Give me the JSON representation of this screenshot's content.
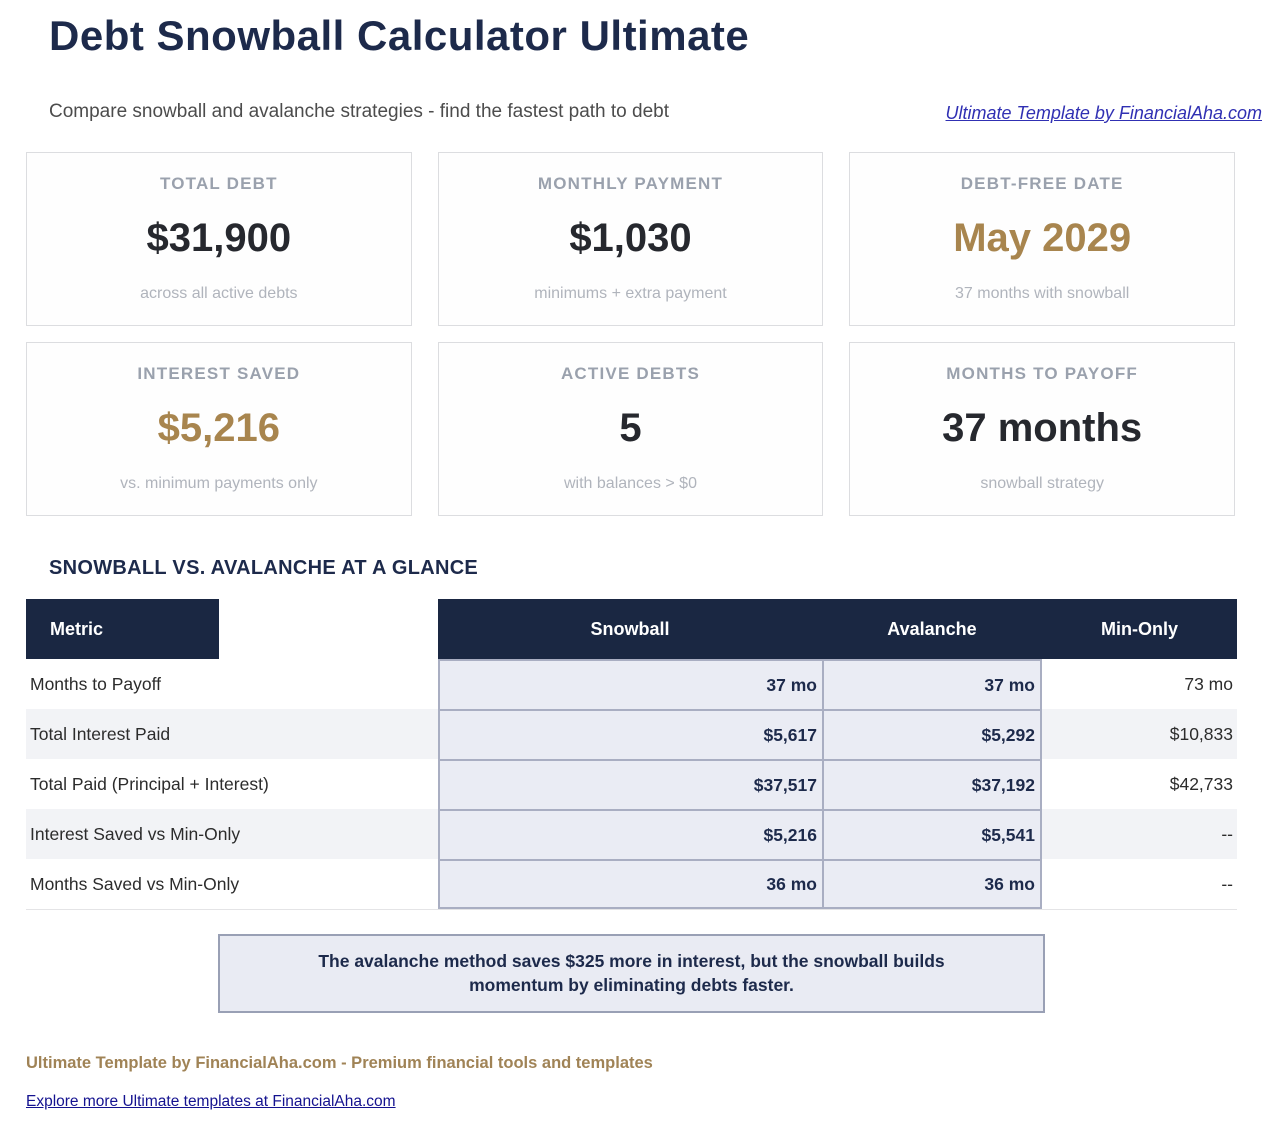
{
  "header": {
    "title": "Debt Snowball Calculator Ultimate",
    "subtitle": "Compare snowball and avalanche strategies - find the fastest path to debt",
    "template_link": "Ultimate Template by FinancialAha.com"
  },
  "stat_cards": [
    {
      "label": "TOTAL DEBT",
      "value": "$31,900",
      "note": "across all active debts"
    },
    {
      "label": "MONTHLY PAYMENT",
      "value": "$1,030",
      "note": "minimums + extra payment"
    },
    {
      "label": "DEBT-FREE DATE",
      "value": "May 2029",
      "note": "37 months with snowball"
    },
    {
      "label": "INTEREST SAVED",
      "value": "$5,216",
      "note": "vs. minimum payments only"
    },
    {
      "label": "ACTIVE DEBTS",
      "value": "5",
      "note": "with balances > $0"
    },
    {
      "label": "MONTHS TO PAYOFF",
      "value": "37 months",
      "note": "snowball strategy"
    }
  ],
  "comparison": {
    "heading": "SNOWBALL VS. AVALANCHE AT A GLANCE",
    "columns": {
      "metric": "Metric",
      "snowball": "Snowball",
      "avalanche": "Avalanche",
      "min_only": "Min-Only"
    },
    "rows": [
      {
        "metric": "Months to Payoff",
        "snowball": "37 mo",
        "avalanche": "37 mo",
        "min_only": "73 mo"
      },
      {
        "metric": "Total Interest Paid",
        "snowball": "$5,617",
        "avalanche": "$5,292",
        "min_only": "$10,833"
      },
      {
        "metric": "Total Paid (Principal + Interest)",
        "snowball": "$37,517",
        "avalanche": "$37,192",
        "min_only": "$42,733"
      },
      {
        "metric": "Interest Saved vs Min-Only",
        "snowball": "$5,216",
        "avalanche": "$5,541",
        "min_only": "--"
      },
      {
        "metric": "Months Saved vs Min-Only",
        "snowball": "36 mo",
        "avalanche": "36 mo",
        "min_only": "--"
      }
    ],
    "callout": "The avalanche method saves $325 more in interest, but the snowball builds momentum by eliminating debts faster."
  },
  "footer": {
    "tagline": "Ultimate Template by FinancialAha.com - Premium financial tools and templates",
    "link": "Explore more Ultimate templates at FinancialAha.com"
  },
  "colors": {
    "navy_text": "#1d2a4b",
    "table_header_bg": "#1a2742",
    "gold_accent": "#a8854e",
    "highlight_bg": "#eaecf4",
    "highlight_border": "#a9aec2",
    "row_stripe": "#f2f3f6",
    "top_link_blue": "#3030b3",
    "footer_link_blue": "#14128f"
  }
}
